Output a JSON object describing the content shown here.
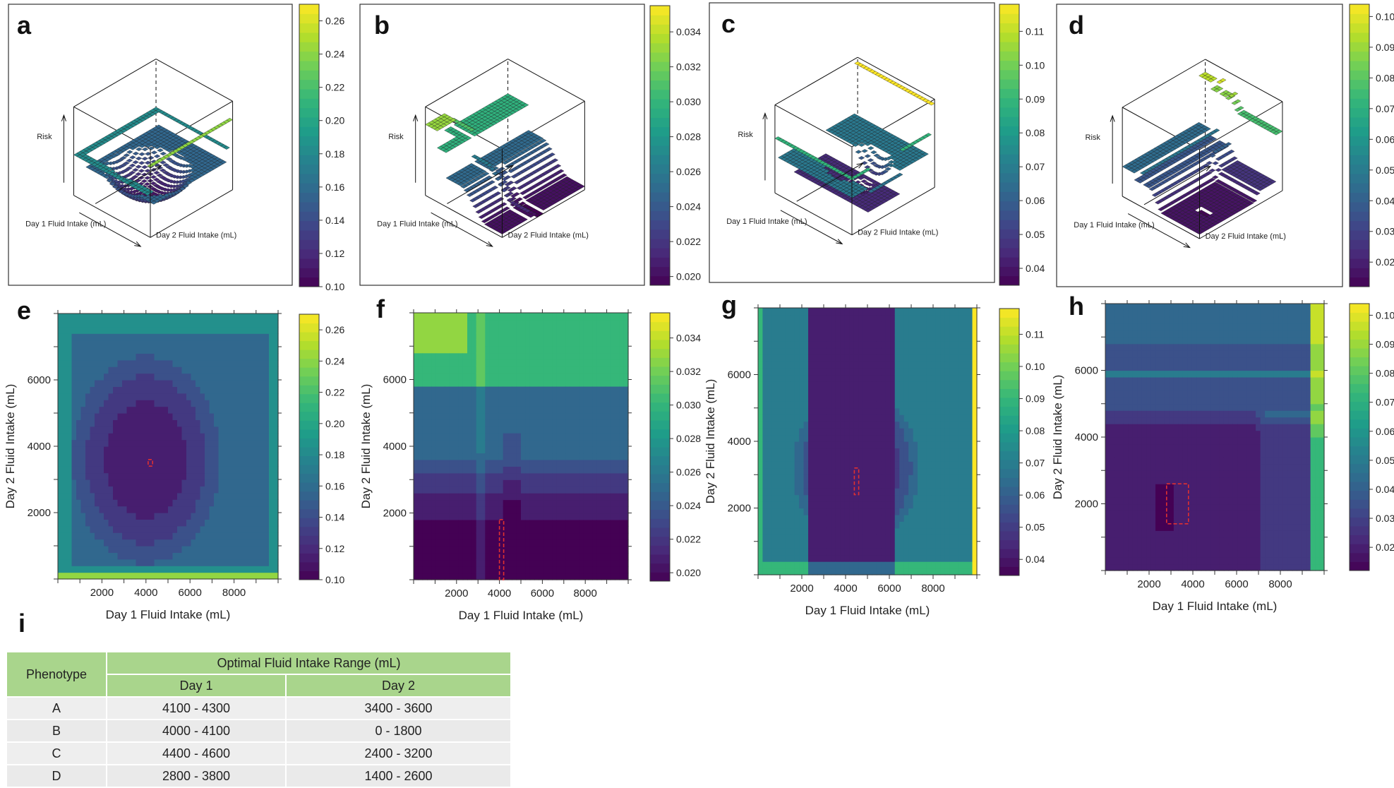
{
  "colors": {
    "viridis": [
      "#440154",
      "#482878",
      "#3e4989",
      "#31688e",
      "#26828e",
      "#1f9e89",
      "#35b779",
      "#6ece58",
      "#b5de2b",
      "#fde725"
    ],
    "highlight": "#e03030",
    "table_header": "#a9d58c",
    "table_row": "#ececec"
  },
  "chart_data": [
    {
      "panel": "a",
      "type": "surface3d",
      "xlabel": "Day 1 Fluid Intake (mL)",
      "ylabel": "Day 2 Fluid Intake (mL)",
      "zlabel": "Risk",
      "colorbar": {
        "min": 0.1,
        "max": 0.27,
        "ticks": [
          "0.10",
          "0.12",
          "0.14",
          "0.16",
          "0.18",
          "0.20",
          "0.22",
          "0.24",
          "0.26"
        ]
      }
    },
    {
      "panel": "b",
      "type": "surface3d",
      "xlabel": "Day 1 Fluid Intake (mL)",
      "ylabel": "Day 2 Fluid Intake (mL)",
      "zlabel": "Risk",
      "colorbar": {
        "min": 0.0195,
        "max": 0.0355,
        "ticks": [
          "0.020",
          "0.022",
          "0.024",
          "0.026",
          "0.028",
          "0.030",
          "0.032",
          "0.034"
        ]
      }
    },
    {
      "panel": "c",
      "type": "surface3d",
      "xlabel": "Day 1 Fluid Intake (mL)",
      "ylabel": "Day 2 Fluid Intake (mL)",
      "zlabel": "Risk",
      "colorbar": {
        "min": 0.035,
        "max": 0.118,
        "ticks": [
          "0.04",
          "0.05",
          "0.06",
          "0.07",
          "0.08",
          "0.09",
          "0.10",
          "0.11"
        ]
      }
    },
    {
      "panel": "d",
      "type": "surface3d",
      "xlabel": "Day 1 Fluid Intake (mL)",
      "ylabel": "Day 2 Fluid Intake (mL)",
      "zlabel": "Risk",
      "colorbar": {
        "min": 0.012,
        "max": 0.104,
        "ticks": [
          "0.02",
          "0.03",
          "0.04",
          "0.05",
          "0.06",
          "0.07",
          "0.08",
          "0.09",
          "0.10"
        ]
      }
    },
    {
      "panel": "e",
      "type": "heatmap",
      "xlabel": "Day 1 Fluid Intake (mL)",
      "ylabel": "Day 2 Fluid Intake (mL)",
      "xlim": [
        0,
        10000
      ],
      "ylim": [
        0,
        8000
      ],
      "xticks": [
        2000,
        4000,
        6000,
        8000
      ],
      "yticks": [
        2000,
        4000,
        6000
      ],
      "highlight": {
        "x": [
          4100,
          4300
        ],
        "y": [
          3400,
          3600
        ]
      },
      "colorbar": {
        "min": 0.1,
        "max": 0.27,
        "ticks": [
          "0.10",
          "0.12",
          "0.14",
          "0.16",
          "0.18",
          "0.20",
          "0.22",
          "0.24",
          "0.26"
        ]
      }
    },
    {
      "panel": "f",
      "type": "heatmap",
      "xlabel": "Day 1 Fluid Intake (mL)",
      "ylabel": "Day 2 Fluid Intake (mL)",
      "xlim": [
        0,
        10000
      ],
      "ylim": [
        0,
        8000
      ],
      "xticks": [
        2000,
        4000,
        6000,
        8000
      ],
      "yticks": [
        2000,
        4000,
        6000
      ],
      "highlight": {
        "x": [
          4000,
          4100
        ],
        "y": [
          0,
          1800
        ]
      },
      "colorbar": {
        "min": 0.0195,
        "max": 0.0355,
        "ticks": [
          "0.020",
          "0.022",
          "0.024",
          "0.026",
          "0.028",
          "0.030",
          "0.032",
          "0.034"
        ]
      }
    },
    {
      "panel": "g",
      "type": "heatmap",
      "xlabel": "Day 1 Fluid Intake (mL)",
      "ylabel": "Day 2 Fluid Intake (mL)",
      "xlim": [
        0,
        10000
      ],
      "ylim": [
        0,
        8000
      ],
      "xticks": [
        2000,
        4000,
        6000,
        8000
      ],
      "yticks": [
        2000,
        4000,
        6000
      ],
      "highlight": {
        "x": [
          4400,
          4600
        ],
        "y": [
          2400,
          3200
        ]
      },
      "colorbar": {
        "min": 0.035,
        "max": 0.118,
        "ticks": [
          "0.04",
          "0.05",
          "0.06",
          "0.07",
          "0.08",
          "0.09",
          "0.10",
          "0.11"
        ]
      }
    },
    {
      "panel": "h",
      "type": "heatmap",
      "xlabel": "Day 1 Fluid Intake (mL)",
      "ylabel": "Day 2 Fluid Intake (mL)",
      "xlim": [
        0,
        10000
      ],
      "ylim": [
        0,
        8000
      ],
      "xticks": [
        2000,
        4000,
        6000,
        8000
      ],
      "yticks": [
        2000,
        4000,
        6000
      ],
      "highlight": {
        "x": [
          2800,
          3800
        ],
        "y": [
          1400,
          2600
        ]
      },
      "colorbar": {
        "min": 0.012,
        "max": 0.104,
        "ticks": [
          "0.02",
          "0.03",
          "0.04",
          "0.05",
          "0.06",
          "0.07",
          "0.08",
          "0.09",
          "0.10"
        ]
      }
    }
  ],
  "table": {
    "label": "i",
    "col_phenotype": "Phenotype",
    "group_header": "Optimal Fluid Intake Range (mL)",
    "col_day1": "Day 1",
    "col_day2": "Day 2",
    "rows": [
      {
        "phenotype": "A",
        "day1": "4100 - 4300",
        "day2": "3400 - 3600"
      },
      {
        "phenotype": "B",
        "day1": "4000 - 4100",
        "day2": "0 - 1800"
      },
      {
        "phenotype": "C",
        "day1": "4400 - 4600",
        "day2": "2400 - 3200"
      },
      {
        "phenotype": "D",
        "day1": "2800 - 3800",
        "day2": "1400 - 2600"
      }
    ]
  }
}
